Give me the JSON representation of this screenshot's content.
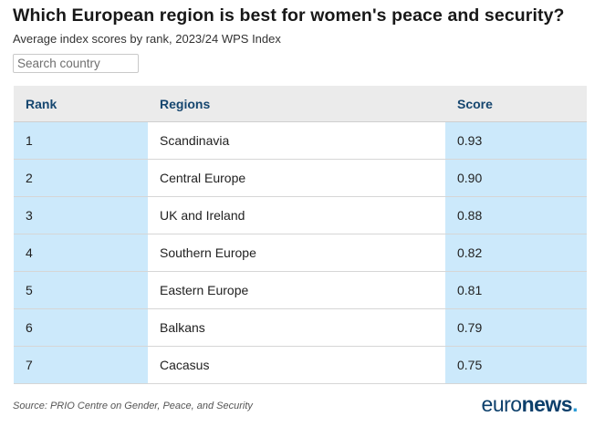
{
  "header": {
    "title": "Which European region is best for women's peace and security?",
    "subtitle": "Average index scores by rank, 2023/24 WPS Index"
  },
  "search": {
    "placeholder": "Search country",
    "value": ""
  },
  "table": {
    "columns": [
      "Rank",
      "Regions",
      "Score"
    ],
    "rows": [
      {
        "rank": "1",
        "region": "Scandinavia",
        "score": "0.93"
      },
      {
        "rank": "2",
        "region": "Central Europe",
        "score": "0.90"
      },
      {
        "rank": "3",
        "region": "UK and Ireland",
        "score": "0.88"
      },
      {
        "rank": "4",
        "region": "Southern Europe",
        "score": "0.82"
      },
      {
        "rank": "5",
        "region": "Eastern Europe",
        "score": "0.81"
      },
      {
        "rank": "6",
        "region": "Balkans",
        "score": "0.79"
      },
      {
        "rank": "7",
        "region": "Cacasus",
        "score": "0.75"
      }
    ]
  },
  "footer": {
    "source": "Source: PRIO Centre on Gender, Peace, and Security",
    "logo_primary": "euro",
    "logo_secondary": "news",
    "logo_dot": "."
  },
  "colors": {
    "header_text": "#15466f",
    "highlight_column": "#cce9fb",
    "header_background": "#ebebeb",
    "logo_navy": "#0c3f6b",
    "logo_dot": "#2a9cd7"
  }
}
